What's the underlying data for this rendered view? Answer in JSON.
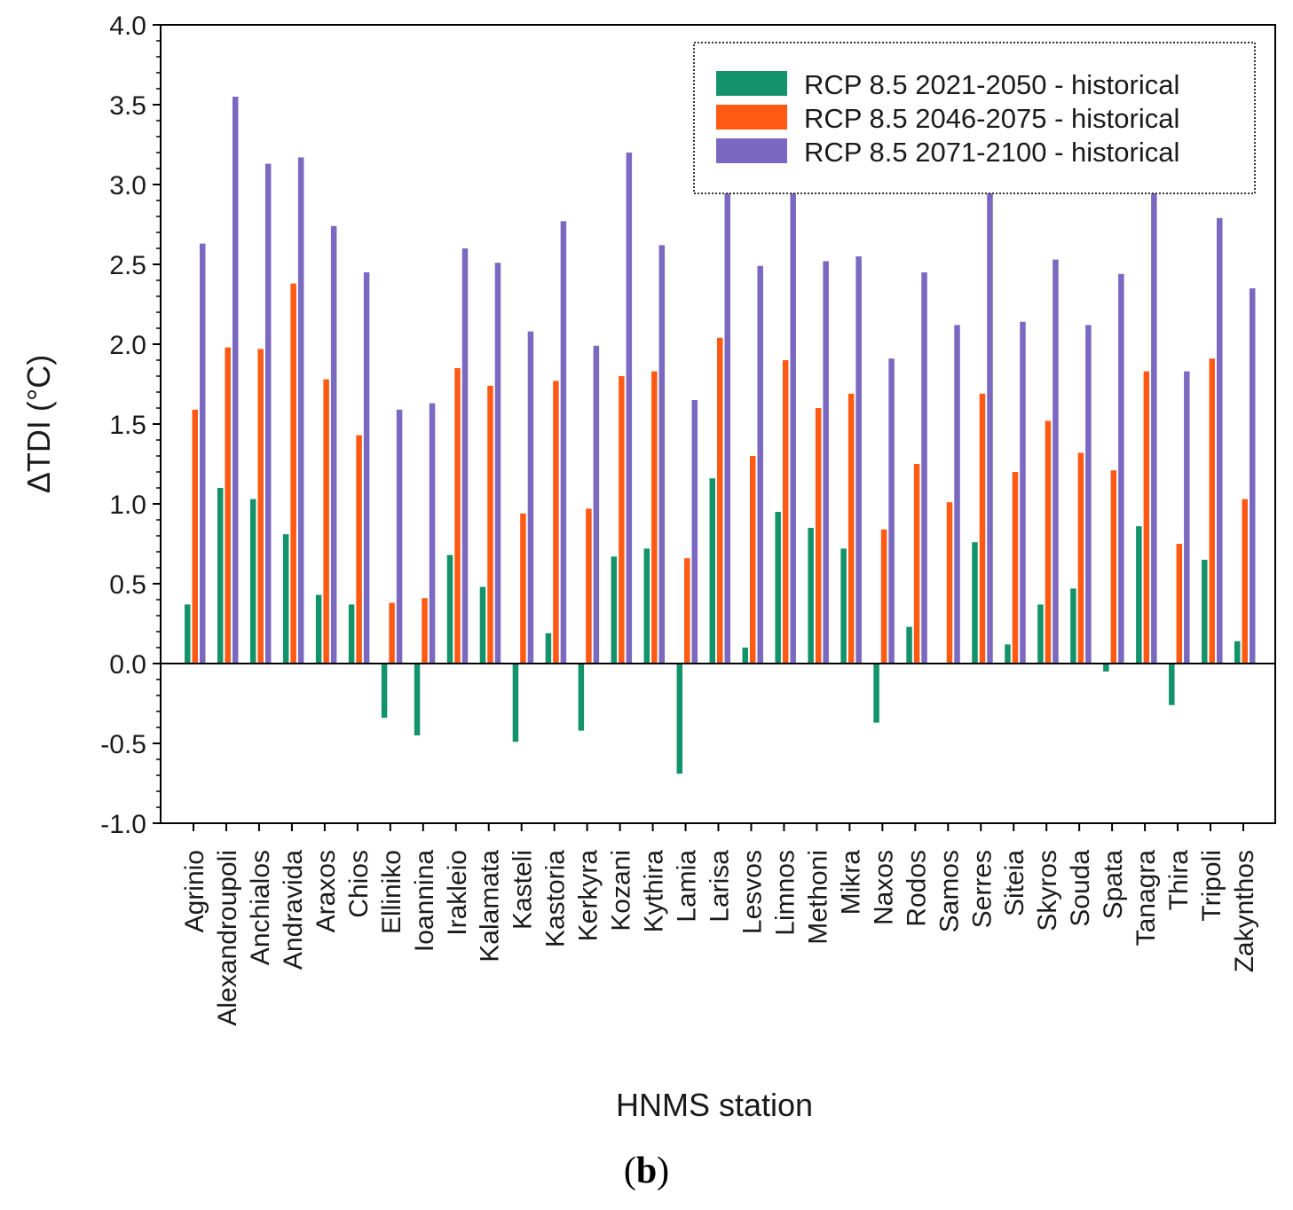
{
  "chart_data": {
    "type": "bar",
    "xlabel": "HNMS station",
    "ylabel": "ΔTDI (°C)",
    "ylim": [
      -1.0,
      4.0
    ],
    "yticks": [
      -1.0,
      -0.5,
      0.0,
      0.5,
      1.0,
      1.5,
      2.0,
      2.5,
      3.0,
      3.5,
      4.0
    ],
    "ytick_labels": [
      "-1.0",
      "-0.5",
      "0.0",
      "0.5",
      "1.0",
      "1.5",
      "2.0",
      "2.5",
      "3.0",
      "3.5",
      "4.0"
    ],
    "legend_position": "top-right",
    "categories": [
      "Agrinio",
      "Alexandroupoli",
      "Anchialos",
      "Andravida",
      "Araxos",
      "Chios",
      "Elliniko",
      "Ioannina",
      "Irakleio",
      "Kalamata",
      "Kasteli",
      "Kastoria",
      "Kerkyra",
      "Kozani",
      "Kythira",
      "Lamia",
      "Larisa",
      "Lesvos",
      "Limnos",
      "Methoni",
      "Mikra",
      "Naxos",
      "Rodos",
      "Samos",
      "Serres",
      "Siteia",
      "Skyros",
      "Souda",
      "Spata",
      "Tanagra",
      "Thira",
      "Tripoli",
      "Zakynthos"
    ],
    "series": [
      {
        "name": "RCP 8.5 2021-2050 - historical",
        "color": "#13936b",
        "values": [
          0.37,
          1.1,
          1.03,
          0.81,
          0.43,
          0.37,
          -0.34,
          -0.45,
          0.68,
          0.48,
          -0.49,
          0.19,
          -0.42,
          0.67,
          0.72,
          -0.69,
          1.16,
          0.1,
          0.95,
          0.85,
          0.72,
          -0.37,
          0.23,
          0.0,
          0.76,
          0.12,
          0.37,
          0.47,
          -0.05,
          0.86,
          -0.26,
          0.65,
          0.14
        ]
      },
      {
        "name": "RCP 8.5 2046-2075 - historical",
        "color": "#ff5a14",
        "values": [
          1.59,
          1.98,
          1.97,
          2.38,
          1.78,
          1.43,
          0.38,
          0.41,
          1.85,
          1.74,
          0.94,
          1.77,
          0.97,
          1.8,
          1.83,
          0.66,
          2.04,
          1.3,
          1.9,
          1.6,
          1.69,
          0.84,
          1.25,
          1.01,
          1.69,
          1.2,
          1.52,
          1.32,
          1.21,
          1.83,
          0.75,
          1.91,
          1.03
        ]
      },
      {
        "name": "RCP 8.5 2071-2100 - historical",
        "color": "#7b68c0",
        "values": [
          2.63,
          3.55,
          3.13,
          3.17,
          2.74,
          2.45,
          1.59,
          1.63,
          2.6,
          2.51,
          2.08,
          2.77,
          1.99,
          3.2,
          2.62,
          1.65,
          3.35,
          2.49,
          3.02,
          2.52,
          2.55,
          1.91,
          2.45,
          2.12,
          2.96,
          2.14,
          2.53,
          2.12,
          2.44,
          2.96,
          1.83,
          2.79,
          2.35
        ]
      }
    ]
  },
  "caption": {
    "open": "(",
    "letter": "b",
    "close": ")"
  }
}
